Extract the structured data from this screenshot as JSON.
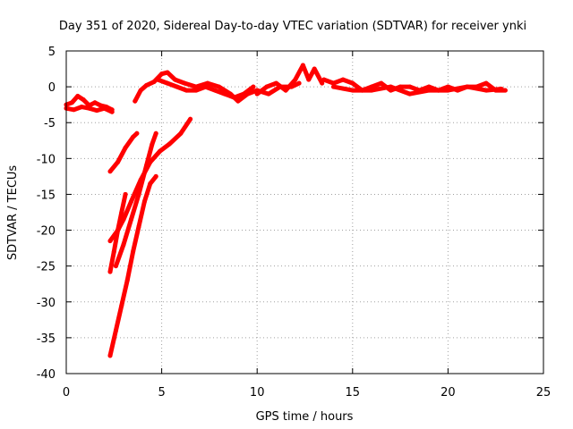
{
  "chart_data": {
    "type": "scatter",
    "title": "Day 351 of 2020, Sidereal Day-to-day VTEC variation (SDTVAR) for receiver ynki",
    "xlabel": "GPS time / hours",
    "ylabel": "SDTVAR / TECUs",
    "xlim": [
      0,
      25
    ],
    "ylim": [
      -40,
      5
    ],
    "xticks": [
      0,
      5,
      10,
      15,
      20,
      25
    ],
    "yticks": [
      5,
      0,
      -5,
      -10,
      -15,
      -20,
      -25,
      -30,
      -35,
      -40
    ],
    "grid": true,
    "legend": "none",
    "color": "#ff0000",
    "series": [
      {
        "x": [
          0.0,
          0.3,
          0.6,
          0.9,
          1.2,
          1.5,
          1.8,
          2.1,
          2.4
        ],
        "y": [
          -2.5,
          -2.2,
          -1.3,
          -1.8,
          -2.6,
          -2.2,
          -2.6,
          -2.8,
          -3.2
        ]
      },
      {
        "x": [
          0.0,
          0.4,
          0.8,
          1.2,
          1.6,
          2.0,
          2.4
        ],
        "y": [
          -3.0,
          -3.2,
          -2.8,
          -3.0,
          -3.3,
          -3.0,
          -3.5
        ]
      },
      {
        "x": [
          3.6,
          3.9,
          4.2,
          4.6,
          5.0,
          5.3,
          5.7,
          6.2,
          6.8,
          7.4,
          8.0,
          8.6,
          9.0,
          9.5,
          10.0
        ],
        "y": [
          -2.0,
          -0.5,
          0.2,
          0.7,
          1.8,
          2.0,
          1.0,
          0.5,
          0.0,
          0.5,
          0.0,
          -1.0,
          -2.0,
          -1.0,
          -0.5
        ]
      },
      {
        "x": [
          4.8,
          5.3,
          5.8,
          6.3,
          6.8,
          7.3,
          7.8,
          8.3,
          8.8,
          9.3,
          9.8
        ],
        "y": [
          1.0,
          0.5,
          0.0,
          -0.5,
          -0.5,
          0.0,
          -0.5,
          -1.0,
          -1.5,
          -1.0,
          0.0
        ]
      },
      {
        "x": [
          10.0,
          10.5,
          11.0,
          11.5,
          12.0,
          12.4,
          12.7,
          13.0,
          13.4
        ],
        "y": [
          -1.0,
          0.0,
          0.5,
          -0.5,
          1.0,
          3.0,
          1.0,
          2.5,
          0.5
        ]
      },
      {
        "x": [
          10.0,
          10.6,
          11.2,
          11.8,
          12.2
        ],
        "y": [
          -0.5,
          -1.0,
          0.0,
          0.0,
          0.5
        ]
      },
      {
        "x": [
          13.5,
          14.0,
          14.5,
          15.0,
          15.5,
          16.0,
          16.5,
          17.0,
          17.5,
          18.0,
          18.5,
          19.0,
          19.5,
          20.0,
          20.5,
          21.0,
          21.5,
          22.0,
          22.5,
          23.0
        ],
        "y": [
          1.0,
          0.5,
          1.0,
          0.5,
          -0.5,
          0.0,
          0.5,
          -0.5,
          0.0,
          0.0,
          -0.5,
          0.0,
          -0.5,
          0.0,
          -0.5,
          0.0,
          0.0,
          0.5,
          -0.5,
          -0.5
        ]
      },
      {
        "x": [
          14.0,
          15.0,
          16.0,
          17.0,
          18.0,
          19.0,
          20.0,
          21.0,
          22.0,
          22.8
        ],
        "y": [
          0.0,
          -0.5,
          -0.5,
          0.0,
          -1.0,
          -0.5,
          -0.5,
          0.0,
          -0.5,
          -0.3
        ]
      },
      {
        "x": [
          2.3,
          2.7,
          3.1,
          3.5,
          3.7
        ],
        "y": [
          -11.8,
          -10.5,
          -8.5,
          -7.0,
          -6.5
        ]
      },
      {
        "x": [
          2.3,
          2.7,
          3.0,
          3.4,
          3.9,
          4.4,
          4.9,
          5.4,
          6.0,
          6.5
        ],
        "y": [
          -21.5,
          -20.0,
          -18.5,
          -16.0,
          -13.0,
          -10.5,
          -9.0,
          -8.0,
          -6.5,
          -4.5
        ]
      },
      {
        "x": [
          2.3,
          2.5,
          2.7,
          2.9,
          3.1
        ],
        "y": [
          -25.8,
          -23.0,
          -20.0,
          -17.5,
          -15.0
        ]
      },
      {
        "x": [
          2.3,
          2.6,
          2.9,
          3.2,
          3.5,
          3.8,
          4.1,
          4.4,
          4.7
        ],
        "y": [
          -37.5,
          -34.0,
          -30.5,
          -27.0,
          -23.0,
          -19.5,
          -16.0,
          -13.5,
          -12.5
        ]
      },
      {
        "x": [
          2.6,
          3.0,
          3.4,
          3.8,
          4.2,
          4.5,
          4.7
        ],
        "y": [
          -25.0,
          -22.0,
          -18.5,
          -15.0,
          -11.0,
          -8.0,
          -6.5
        ]
      }
    ]
  }
}
